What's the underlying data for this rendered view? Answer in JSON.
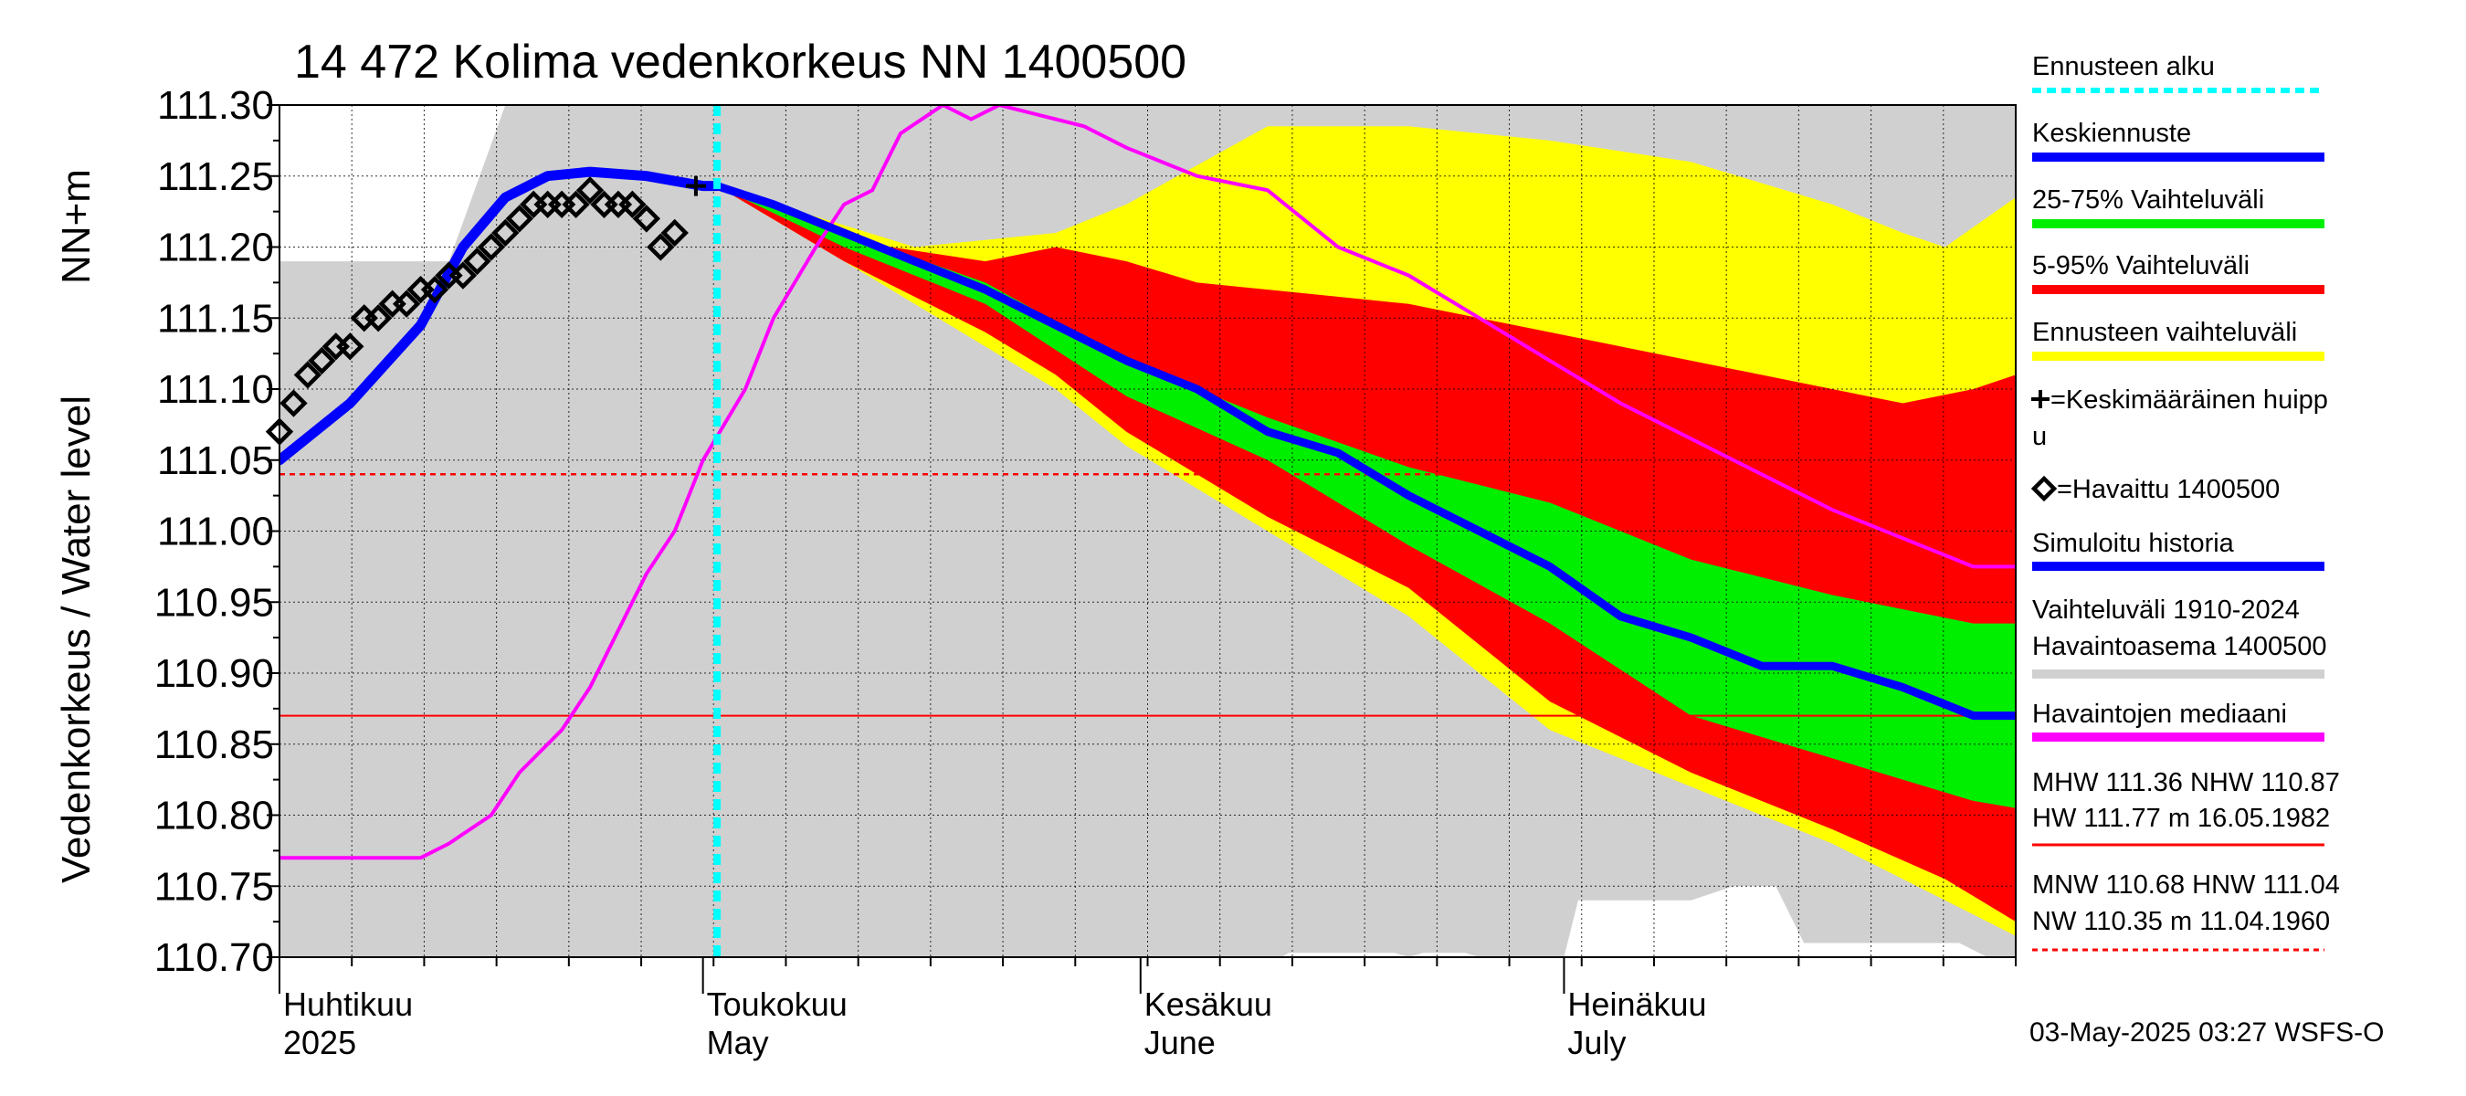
{
  "chart_data": {
    "type": "area",
    "title": "14 472 Kolima vedenkorkeus NN 1400500",
    "ylabel_fi": "Vedenkorkeus / Water level",
    "ylabel_unit": "NN+m",
    "ylim": [
      110.7,
      111.3
    ],
    "yticks": [
      "111.30",
      "111.25",
      "111.20",
      "111.15",
      "111.10",
      "111.05",
      "111.00",
      "110.95",
      "110.90",
      "110.85",
      "110.80",
      "110.75",
      "110.70"
    ],
    "x_range_days": [
      0,
      123
    ],
    "x_start_date": "2025-03-29",
    "month_labels": [
      {
        "fi": "Huhtikuu",
        "en": "2025",
        "day": 0
      },
      {
        "fi": "Toukokuu",
        "en": "May",
        "day": 30
      },
      {
        "fi": "Kesäkuu",
        "en": "June",
        "day": 61
      },
      {
        "fi": "Heinäkuu",
        "en": "July",
        "day": 91
      }
    ],
    "forecast_start_day": 31,
    "reference_lines": {
      "median": 110.87,
      "hnw": 111.04
    },
    "mean_peak": {
      "day": 29.5,
      "value": 111.243
    },
    "history_band_upper": [
      [
        0,
        111.19
      ],
      [
        12,
        111.19
      ],
      [
        16,
        111.3
      ],
      [
        123,
        111.3
      ]
    ],
    "history_band_lower": [
      [
        0,
        110.7
      ],
      [
        70,
        110.7
      ],
      [
        70,
        110.7
      ],
      [
        71,
        110.7
      ],
      [
        71.5,
        110.703
      ],
      [
        79,
        110.703
      ],
      [
        80,
        110.7
      ],
      [
        81,
        110.703
      ],
      [
        84,
        110.703
      ],
      [
        85,
        110.7
      ],
      [
        90,
        110.7
      ],
      [
        91,
        110.7
      ],
      [
        92,
        110.74
      ],
      [
        100,
        110.74
      ],
      [
        103,
        110.75
      ],
      [
        106,
        110.75
      ],
      [
        108,
        110.71
      ],
      [
        119,
        110.71
      ],
      [
        121,
        110.7
      ],
      [
        123,
        110.7
      ]
    ],
    "series": [
      {
        "name": "Ennusteen vaihteluväli",
        "color": "#ffff00",
        "upper": [
          [
            31,
            111.243
          ],
          [
            45,
            111.2
          ],
          [
            55,
            111.21
          ],
          [
            60,
            111.23
          ],
          [
            70,
            111.285
          ],
          [
            80,
            111.285
          ],
          [
            90,
            111.275
          ],
          [
            100,
            111.26
          ],
          [
            110,
            111.23
          ],
          [
            115,
            111.21
          ],
          [
            118,
            111.2
          ],
          [
            123,
            111.235
          ]
        ],
        "lower": [
          [
            31,
            111.243
          ],
          [
            40,
            111.19
          ],
          [
            50,
            111.13
          ],
          [
            55,
            111.1
          ],
          [
            60,
            111.06
          ],
          [
            70,
            111.0
          ],
          [
            80,
            110.94
          ],
          [
            90,
            110.86
          ],
          [
            100,
            110.82
          ],
          [
            110,
            110.78
          ],
          [
            118,
            110.74
          ],
          [
            123,
            110.715
          ]
        ]
      },
      {
        "name": "5-95% Vaihteluväli",
        "color": "#ff0000",
        "upper": [
          [
            31,
            111.243
          ],
          [
            40,
            111.205
          ],
          [
            50,
            111.19
          ],
          [
            55,
            111.2
          ],
          [
            60,
            111.19
          ],
          [
            65,
            111.175
          ],
          [
            70,
            111.17
          ],
          [
            80,
            111.16
          ],
          [
            90,
            111.14
          ],
          [
            100,
            111.12
          ],
          [
            110,
            111.1
          ],
          [
            115,
            111.09
          ],
          [
            120,
            111.1
          ],
          [
            123,
            111.11
          ]
        ],
        "lower": [
          [
            31,
            111.243
          ],
          [
            40,
            111.19
          ],
          [
            50,
            111.14
          ],
          [
            55,
            111.11
          ],
          [
            60,
            111.07
          ],
          [
            70,
            111.01
          ],
          [
            80,
            110.96
          ],
          [
            90,
            110.88
          ],
          [
            100,
            110.83
          ],
          [
            110,
            110.79
          ],
          [
            118,
            110.755
          ],
          [
            123,
            110.725
          ]
        ]
      },
      {
        "name": "25-75% Vaihteluväli",
        "color": "#00ee00",
        "upper": [
          [
            31,
            111.243
          ],
          [
            40,
            111.21
          ],
          [
            50,
            111.175
          ],
          [
            60,
            111.12
          ],
          [
            70,
            111.08
          ],
          [
            80,
            111.045
          ],
          [
            90,
            111.02
          ],
          [
            100,
            110.98
          ],
          [
            110,
            110.955
          ],
          [
            120,
            110.935
          ],
          [
            123,
            110.935
          ]
        ],
        "lower": [
          [
            31,
            111.243
          ],
          [
            40,
            111.2
          ],
          [
            50,
            111.16
          ],
          [
            60,
            111.095
          ],
          [
            70,
            111.05
          ],
          [
            80,
            110.99
          ],
          [
            90,
            110.935
          ],
          [
            100,
            110.87
          ],
          [
            110,
            110.84
          ],
          [
            115,
            110.825
          ],
          [
            120,
            110.81
          ],
          [
            123,
            110.805
          ]
        ]
      },
      {
        "name": "Havaintojen mediaani",
        "color": "#ff00ff",
        "points": [
          [
            0,
            110.77
          ],
          [
            10,
            110.77
          ],
          [
            12,
            110.78
          ],
          [
            15,
            110.8
          ],
          [
            17,
            110.83
          ],
          [
            20,
            110.86
          ],
          [
            22,
            110.89
          ],
          [
            24,
            110.93
          ],
          [
            26,
            110.97
          ],
          [
            28,
            111.0
          ],
          [
            30,
            111.05
          ],
          [
            33,
            111.1
          ],
          [
            35,
            111.15
          ],
          [
            38,
            111.2
          ],
          [
            40,
            111.23
          ],
          [
            42,
            111.24
          ],
          [
            44,
            111.28
          ],
          [
            47,
            111.3
          ],
          [
            49,
            111.29
          ],
          [
            51,
            111.3
          ],
          [
            53,
            111.295
          ],
          [
            57,
            111.285
          ],
          [
            60,
            111.27
          ],
          [
            65,
            111.25
          ],
          [
            70,
            111.24
          ],
          [
            75,
            111.2
          ],
          [
            80,
            111.18
          ],
          [
            85,
            111.15
          ],
          [
            90,
            111.12
          ],
          [
            95,
            111.09
          ],
          [
            100,
            111.065
          ],
          [
            105,
            111.04
          ],
          [
            110,
            111.015
          ],
          [
            115,
            110.995
          ],
          [
            120,
            110.975
          ],
          [
            123,
            110.975
          ]
        ]
      },
      {
        "name": "Keskiennuste",
        "color": "#0000ff",
        "points": [
          [
            31,
            111.243
          ],
          [
            35,
            111.23
          ],
          [
            40,
            111.21
          ],
          [
            45,
            111.19
          ],
          [
            50,
            111.17
          ],
          [
            55,
            111.145
          ],
          [
            60,
            111.12
          ],
          [
            65,
            111.1
          ],
          [
            70,
            111.07
          ],
          [
            75,
            111.055
          ],
          [
            80,
            111.025
          ],
          [
            85,
            111.0
          ],
          [
            90,
            110.975
          ],
          [
            95,
            110.94
          ],
          [
            100,
            110.925
          ],
          [
            105,
            110.905
          ],
          [
            110,
            110.905
          ],
          [
            115,
            110.89
          ],
          [
            120,
            110.87
          ],
          [
            123,
            110.87
          ]
        ]
      },
      {
        "name": "Simuloitu historia",
        "color": "#0000ff",
        "points": [
          [
            0,
            111.05
          ],
          [
            5,
            111.09
          ],
          [
            10,
            111.145
          ],
          [
            13,
            111.2
          ],
          [
            16,
            111.235
          ],
          [
            19,
            111.25
          ],
          [
            22,
            111.253
          ],
          [
            26,
            111.25
          ],
          [
            30,
            111.243
          ],
          [
            31,
            111.243
          ]
        ]
      }
    ],
    "observed": {
      "name": "Havaittu 1400500",
      "points": [
        [
          0,
          111.07
        ],
        [
          1,
          111.09
        ],
        [
          2,
          111.11
        ],
        [
          3,
          111.12
        ],
        [
          4,
          111.13
        ],
        [
          5,
          111.13
        ],
        [
          6,
          111.15
        ],
        [
          7,
          111.15
        ],
        [
          8,
          111.16
        ],
        [
          9,
          111.16
        ],
        [
          10,
          111.17
        ],
        [
          11,
          111.17
        ],
        [
          12,
          111.18
        ],
        [
          13,
          111.18
        ],
        [
          14,
          111.19
        ],
        [
          15,
          111.2
        ],
        [
          16,
          111.21
        ],
        [
          17,
          111.22
        ],
        [
          18,
          111.23
        ],
        [
          19,
          111.23
        ],
        [
          20,
          111.23
        ],
        [
          21,
          111.23
        ],
        [
          22,
          111.24
        ],
        [
          23,
          111.23
        ],
        [
          24,
          111.23
        ],
        [
          25,
          111.23
        ],
        [
          26,
          111.22
        ],
        [
          27,
          111.2
        ],
        [
          28,
          111.21
        ]
      ]
    },
    "legend": [
      {
        "label": "Ennusteen alku",
        "color": "#00ffff",
        "style": "dotted"
      },
      {
        "label": "Keskiennuste",
        "color": "#0000ff",
        "style": "thick"
      },
      {
        "label": "25-75% Vaihteluväli",
        "color": "#00ee00",
        "style": "thick"
      },
      {
        "label": "5-95% Vaihteluväli",
        "color": "#ff0000",
        "style": "thick"
      },
      {
        "label": "Ennusteen vaihteluväli",
        "color": "#ffff00",
        "style": "thick"
      },
      {
        "label": "=Keskimääräinen huipp",
        "label2": "u",
        "style": "plus"
      },
      {
        "label": "=Havaittu 1400500",
        "style": "diamond"
      },
      {
        "label": "Simuloitu historia",
        "color": "#0000ff",
        "style": "thick"
      },
      {
        "label": "Vaihteluväli 1910-2024",
        "label2": " Havaintoasema 1400500",
        "color": "#d0d0d0",
        "style": "thick"
      },
      {
        "label": "Havaintojen mediaani",
        "color": "#ff00ff",
        "style": "thick"
      }
    ],
    "stats": {
      "line1": "MHW 111.36 NHW 110.87",
      "line2": "HW 111.77 m 16.05.1982",
      "line3": "MNW 110.68 HNW 111.04",
      "line4": "NW 110.35 m 11.04.1960"
    },
    "footer": "03-May-2025 03:27 WSFS-O"
  }
}
